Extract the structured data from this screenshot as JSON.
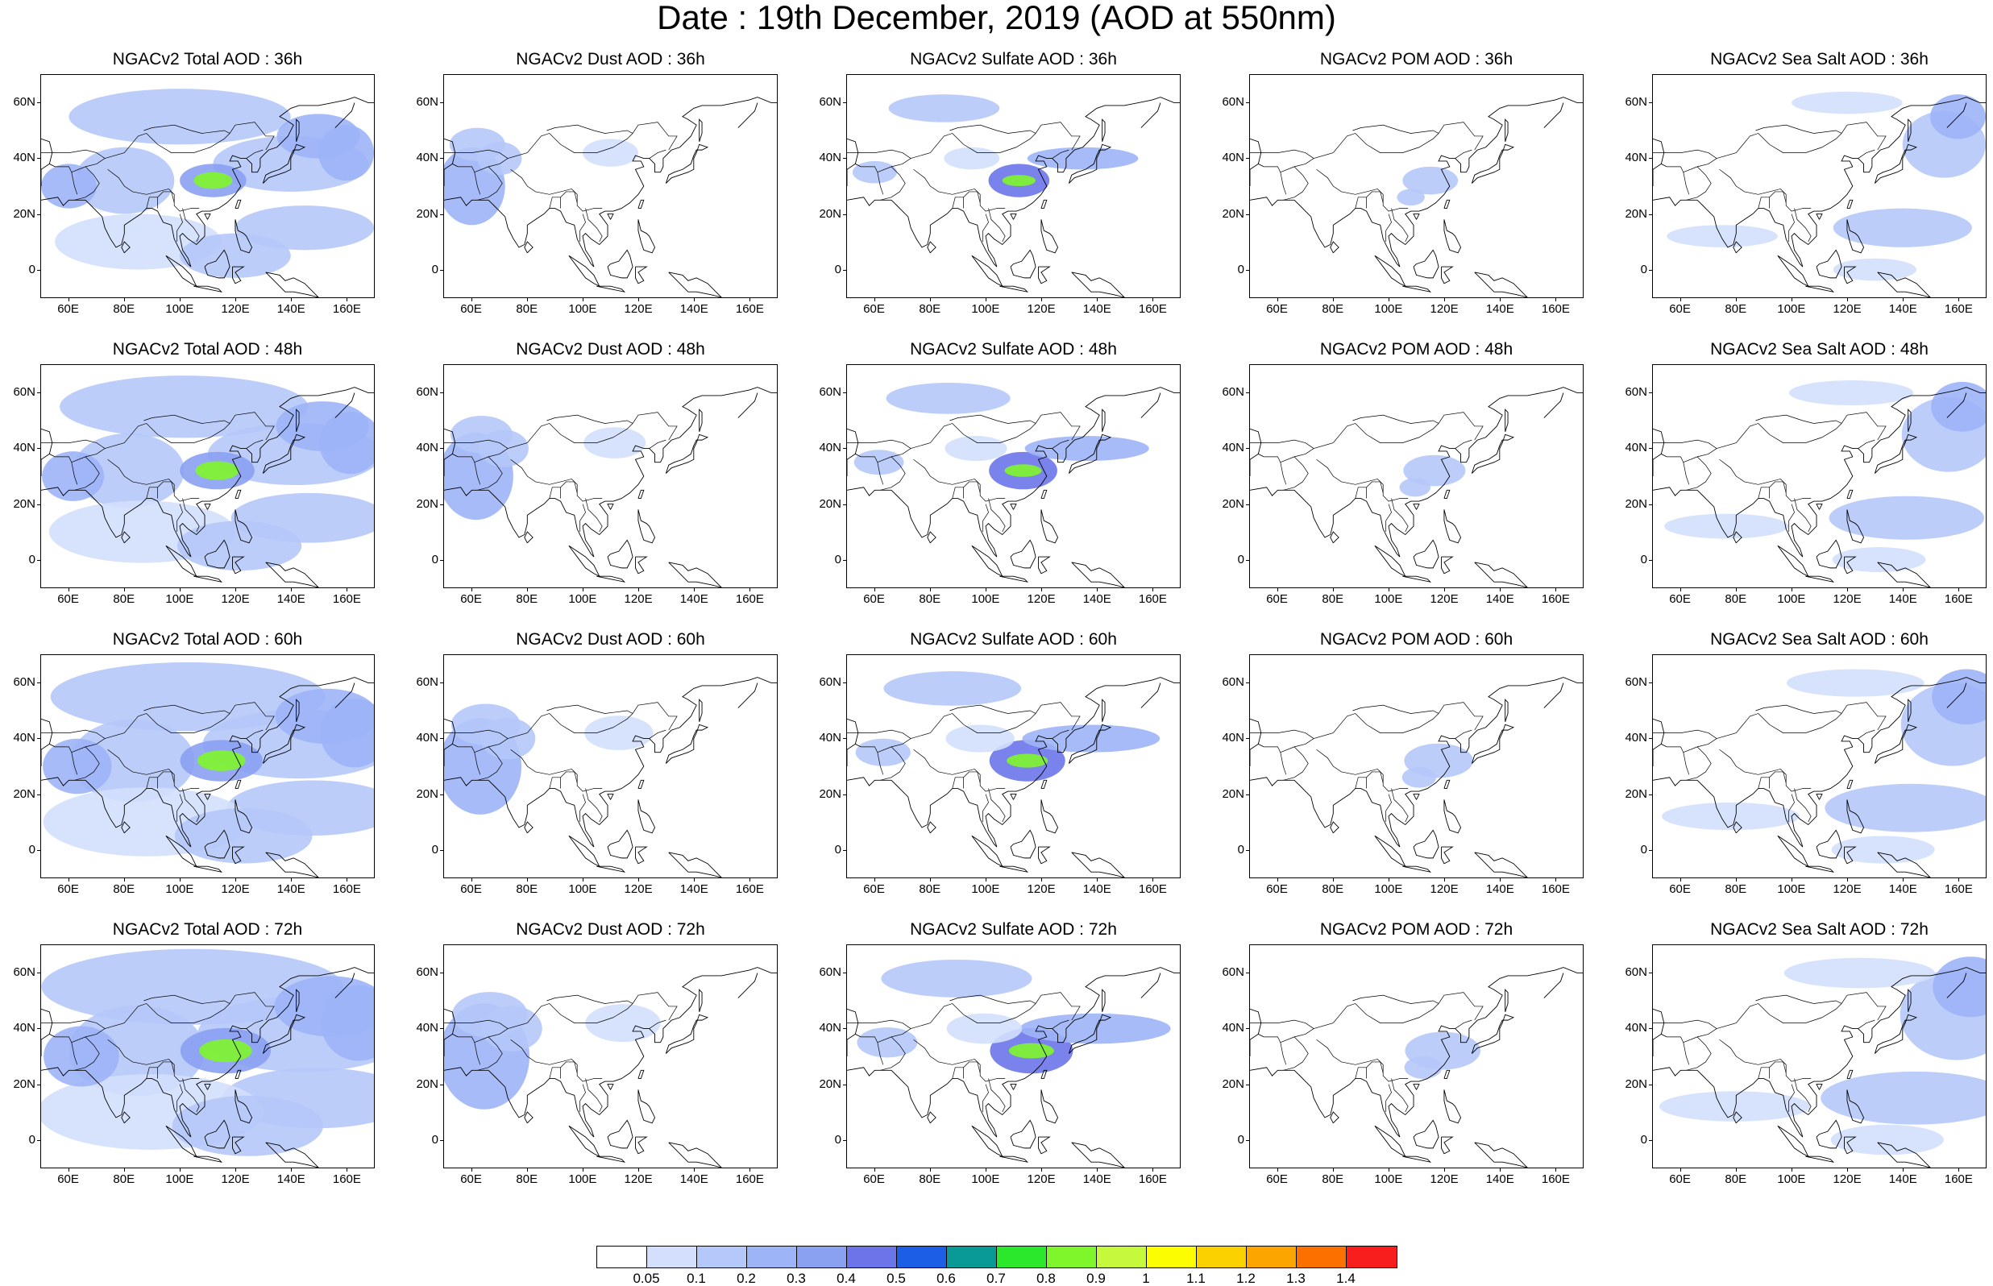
{
  "title": "Date : 19th December, 2019 (AOD at 550nm)",
  "axes": {
    "lat_labels": [
      "60N",
      "40N",
      "20N",
      "0"
    ],
    "lat_values": [
      60,
      40,
      20,
      0
    ],
    "lon_labels": [
      "60E",
      "80E",
      "100E",
      "120E",
      "140E",
      "160E"
    ],
    "lon_values": [
      60,
      80,
      100,
      120,
      140,
      160
    ],
    "lat_range": [
      -10,
      70
    ],
    "lon_range": [
      50,
      170
    ]
  },
  "columns": [
    "total",
    "dust",
    "sulfate",
    "pom",
    "seasalt"
  ],
  "forecast_hours": [
    "36h",
    "48h",
    "60h",
    "72h"
  ],
  "panels": [
    [
      {
        "title": "NGACv2 Total AOD : 36h"
      },
      {
        "title": "NGACv2 Dust AOD : 36h"
      },
      {
        "title": "NGACv2 Sulfate AOD : 36h"
      },
      {
        "title": "NGACv2 POM AOD : 36h"
      },
      {
        "title": "NGACv2 Sea Salt AOD : 36h"
      }
    ],
    [
      {
        "title": "NGACv2 Total AOD : 48h"
      },
      {
        "title": "NGACv2 Dust AOD : 48h"
      },
      {
        "title": "NGACv2 Sulfate AOD : 48h"
      },
      {
        "title": "NGACv2 POM AOD : 48h"
      },
      {
        "title": "NGACv2 Sea Salt AOD : 48h"
      }
    ],
    [
      {
        "title": "NGACv2 Total AOD : 60h"
      },
      {
        "title": "NGACv2 Dust AOD : 60h"
      },
      {
        "title": "NGACv2 Sulfate AOD : 60h"
      },
      {
        "title": "NGACv2 POM AOD : 60h"
      },
      {
        "title": "NGACv2 Sea Salt AOD : 60h"
      }
    ],
    [
      {
        "title": "NGACv2 Total AOD : 72h"
      },
      {
        "title": "NGACv2 Dust AOD : 72h"
      },
      {
        "title": "NGACv2 Sulfate AOD : 72h"
      },
      {
        "title": "NGACv2 POM AOD : 72h"
      },
      {
        "title": "NGACv2 Sea Salt  AOD : 72h"
      }
    ]
  ],
  "colorbar": {
    "labels": [
      "0.05",
      "0.1",
      "0.2",
      "0.3",
      "0.4",
      "0.5",
      "0.6",
      "0.7",
      "0.8",
      "0.9",
      "1",
      "1.1",
      "1.2",
      "1.3",
      "1.4"
    ],
    "colors": [
      "#ffffff",
      "#d3dffc",
      "#b5c8fa",
      "#9db4f7",
      "#8aa1f2",
      "#6c74ea",
      "#1d5ee6",
      "#0a9a96",
      "#2ce82c",
      "#7ff62b",
      "#c6f83c",
      "#fbfd00",
      "#fcd100",
      "#fca500",
      "#fc7000",
      "#f81e1e"
    ]
  }
}
